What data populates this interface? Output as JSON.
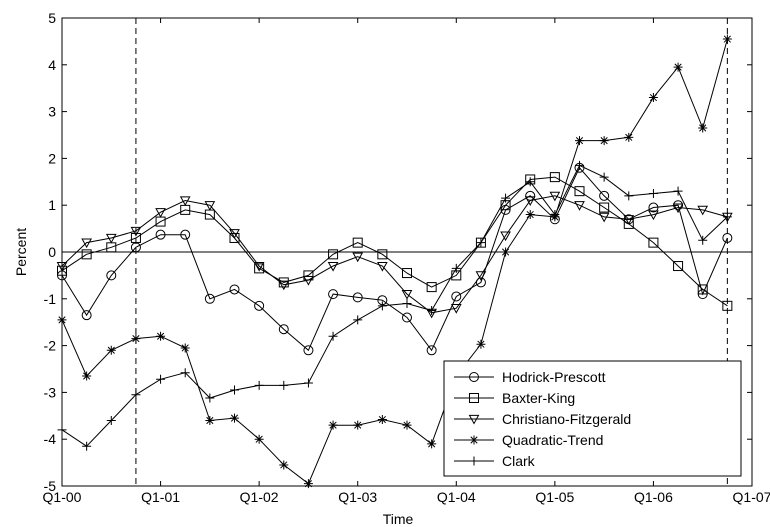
{
  "chart_data": {
    "type": "line",
    "title": "",
    "xlabel": "Time",
    "ylabel": "Percent",
    "ylim": [
      -5,
      5
    ],
    "xlim": [
      0,
      28
    ],
    "grid": false,
    "legend_position": "bottom-right",
    "x_tick_labels": [
      "Q1-00",
      "Q1-01",
      "Q1-02",
      "Q1-03",
      "Q1-04",
      "Q1-05",
      "Q1-06",
      "Q1-07"
    ],
    "x_tick_positions": [
      0,
      4,
      8,
      12,
      16,
      20,
      24,
      28
    ],
    "y_ticks": [
      -5,
      -4,
      -3,
      -2,
      -1,
      0,
      1,
      2,
      3,
      4,
      5
    ],
    "reference_lines": {
      "horizontal_y": 0,
      "vertical_dashed_x": [
        3,
        27
      ]
    },
    "series": [
      {
        "name": "Hodrick-Prescott",
        "marker": "circle",
        "x": [
          0,
          1,
          2,
          3,
          4,
          5,
          6,
          7,
          8,
          9,
          10,
          11,
          12,
          13,
          14,
          15,
          16,
          17,
          18,
          19,
          20,
          21,
          22,
          23,
          24,
          25,
          26,
          27
        ],
        "y": [
          -0.5,
          -1.35,
          -0.5,
          0.1,
          0.37,
          0.37,
          -1.0,
          -0.8,
          -1.15,
          -1.65,
          -2.1,
          -0.9,
          -0.97,
          -1.03,
          -1.4,
          -2.1,
          -0.95,
          -0.65,
          0.9,
          1.2,
          0.7,
          1.8,
          1.2,
          0.7,
          0.95,
          1.0,
          -0.9,
          0.3
        ]
      },
      {
        "name": "Baxter-King",
        "marker": "square",
        "x": [
          0,
          1,
          2,
          3,
          4,
          5,
          6,
          7,
          8,
          9,
          10,
          11,
          12,
          13,
          14,
          15,
          16,
          17,
          18,
          19,
          20,
          21,
          22,
          23,
          24,
          25,
          26,
          27
        ],
        "y": [
          -0.4,
          -0.05,
          0.1,
          0.3,
          0.65,
          0.9,
          0.8,
          0.3,
          -0.35,
          -0.65,
          -0.5,
          -0.05,
          0.2,
          -0.05,
          -0.45,
          -0.75,
          -0.5,
          0.2,
          1.0,
          1.55,
          1.6,
          1.3,
          0.95,
          0.6,
          0.2,
          -0.3,
          -0.8,
          -1.15
        ]
      },
      {
        "name": "Christiano-Fitzgerald",
        "marker": "triangle-down",
        "x": [
          0,
          1,
          2,
          3,
          4,
          5,
          6,
          7,
          8,
          9,
          10,
          11,
          12,
          13,
          14,
          15,
          16,
          17,
          18,
          19,
          20,
          21,
          22,
          23,
          24,
          25,
          26,
          27
        ],
        "y": [
          -0.3,
          0.2,
          0.3,
          0.45,
          0.85,
          1.1,
          1.0,
          0.4,
          -0.3,
          -0.7,
          -0.6,
          -0.3,
          -0.1,
          -0.3,
          -0.9,
          -1.3,
          -1.2,
          -0.5,
          0.35,
          1.1,
          1.2,
          1.0,
          0.75,
          0.7,
          0.8,
          0.95,
          0.9,
          0.75
        ]
      },
      {
        "name": "Quadratic-Trend",
        "marker": "star",
        "x": [
          0,
          1,
          2,
          3,
          4,
          5,
          6,
          7,
          8,
          9,
          10,
          11,
          12,
          13,
          14,
          15,
          16,
          17,
          18,
          19,
          20,
          21,
          22,
          23,
          24,
          25,
          26,
          27
        ],
        "y": [
          -1.45,
          -2.65,
          -2.1,
          -1.85,
          -1.8,
          -2.05,
          -3.6,
          -3.55,
          -4.0,
          -4.55,
          -4.95,
          -3.7,
          -3.7,
          -3.58,
          -3.7,
          -4.1,
          -2.65,
          -1.97,
          0.0,
          0.8,
          0.75,
          2.38,
          2.38,
          2.45,
          3.3,
          3.95,
          2.65,
          4.55
        ]
      },
      {
        "name": "Clark",
        "marker": "plus",
        "x": [
          0,
          1,
          2,
          3,
          4,
          5,
          6,
          7,
          8,
          9,
          10,
          11,
          12,
          13,
          14,
          15,
          16,
          17,
          18,
          19,
          20,
          21,
          22,
          23,
          24,
          25,
          26,
          27
        ],
        "y": [
          -3.8,
          -4.15,
          -3.6,
          -3.05,
          -2.72,
          -2.58,
          -3.12,
          -2.95,
          -2.85,
          -2.85,
          -2.8,
          -1.8,
          -1.45,
          -1.15,
          -1.1,
          -1.25,
          -0.35,
          0.2,
          1.15,
          1.5,
          0.8,
          1.85,
          1.6,
          1.2,
          1.25,
          1.3,
          0.25,
          0.75
        ]
      }
    ]
  }
}
